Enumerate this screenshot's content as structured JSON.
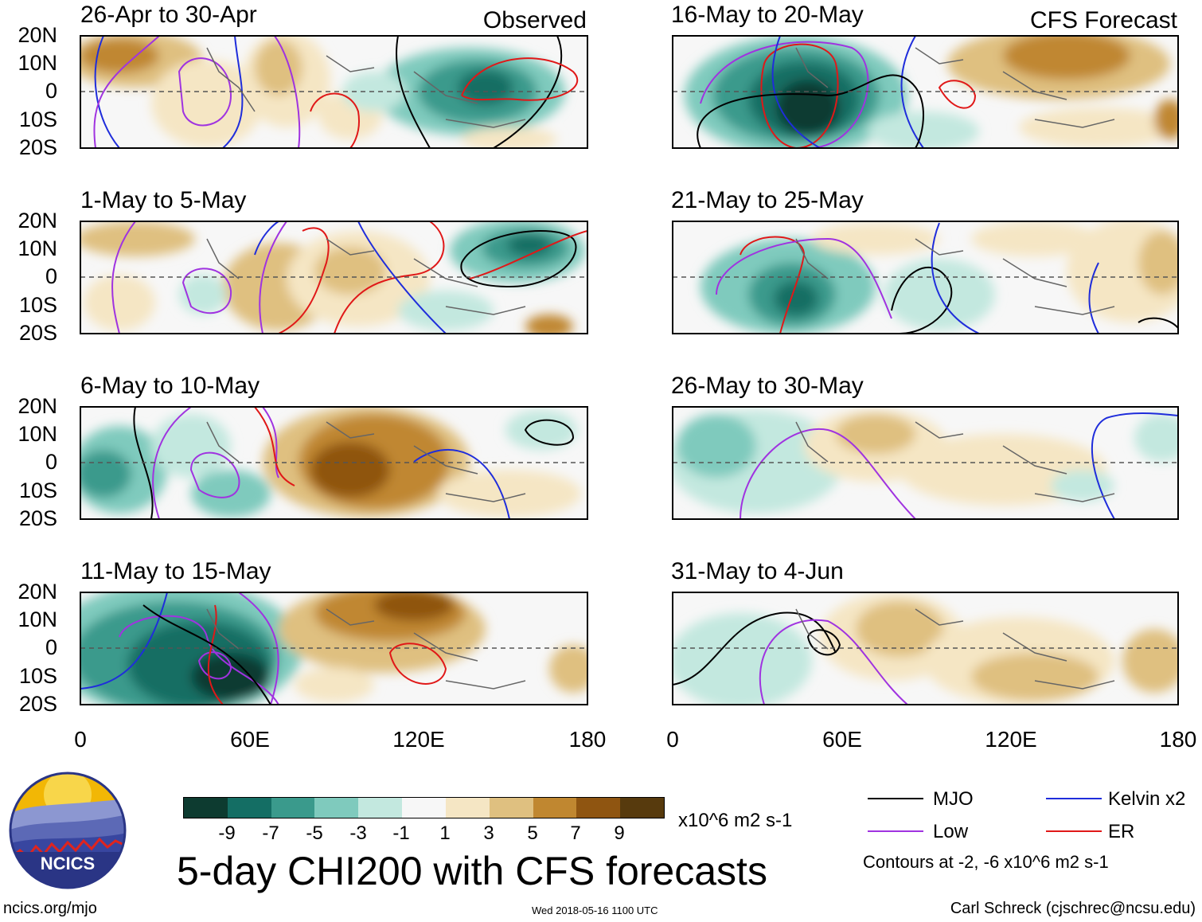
{
  "tags": {
    "observed": "Observed",
    "forecast": "CFS Forecast"
  },
  "y_labels": [
    "20N",
    "10N",
    "0",
    "10S",
    "20S"
  ],
  "x_labels": [
    "0",
    "60E",
    "120E",
    "180"
  ],
  "panels": {
    "left": [
      {
        "title": "26-Apr to 30-Apr"
      },
      {
        "title": "1-May to 5-May"
      },
      {
        "title": "6-May to 10-May"
      },
      {
        "title": "11-May to 15-May"
      }
    ],
    "right": [
      {
        "title": "16-May to 20-May"
      },
      {
        "title": "21-May to 25-May"
      },
      {
        "title": "26-May to 30-May"
      },
      {
        "title": "31-May to 4-Jun"
      }
    ]
  },
  "colorbar": {
    "colors": [
      "#0d3b30",
      "#146e64",
      "#3a9a8c",
      "#7fcabd",
      "#c3e8df",
      "#f7f7f7",
      "#f5e6c4",
      "#dfc080",
      "#c08730",
      "#8f5511",
      "#573a0d"
    ],
    "ticks": [
      "-9",
      "-7",
      "-5",
      "-3",
      "-1",
      "1",
      "3",
      "5",
      "7",
      "9"
    ],
    "units": "x10^6 m2 s-1"
  },
  "main_title": "5-day CHI200 with CFS forecasts",
  "legend": {
    "items": [
      {
        "label": "MJO",
        "color": "#000000"
      },
      {
        "label": "Kelvin x2",
        "color": "#1f2ddb"
      },
      {
        "label": "Low",
        "color": "#a033e0"
      },
      {
        "label": "ER",
        "color": "#e01818"
      }
    ],
    "note": "Contours at -2, -6 x10^6 m2 s-1"
  },
  "logo": {
    "text": "NCICS"
  },
  "footer": {
    "url": "ncics.org/mjo",
    "timestamp": "Wed 2018-05-16 1100 UTC",
    "credit": "Carl Schreck (cjschrec@ncsu.edu)"
  }
}
